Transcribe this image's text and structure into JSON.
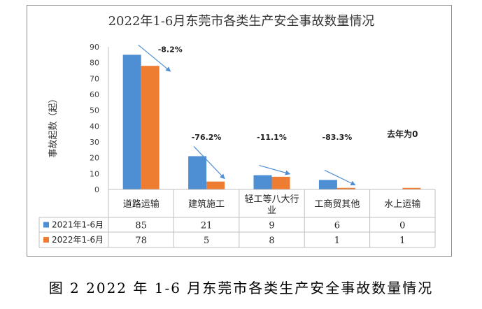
{
  "caption": "图 2 2022 年 1-6 月东莞市各类生产安全事故数量情况",
  "chart_data": {
    "type": "bar",
    "title": "2022年1-6月东莞市各类生产安全事故数量情况",
    "ylabel": "事故起数（起）",
    "ylim": [
      0,
      90
    ],
    "yticks": [
      0,
      10,
      20,
      30,
      40,
      50,
      60,
      70,
      80,
      90
    ],
    "categories": [
      "道路运输",
      "建筑施工",
      "轻工等八大行业",
      "工商贸其他",
      "水上运输"
    ],
    "series": [
      {
        "name": "2021年1-6月",
        "color": "#4e8ed2",
        "values": [
          85,
          21,
          9,
          6,
          0
        ]
      },
      {
        "name": "2022年1-6月",
        "color": "#ee7d31",
        "values": [
          78,
          5,
          8,
          1,
          1
        ]
      }
    ],
    "annotations": [
      "-8.2%",
      "-76.2%",
      "-11.1%",
      "-83.3%",
      "去年为0"
    ],
    "arrow_color": "#4e8ed2",
    "data_table": true
  }
}
